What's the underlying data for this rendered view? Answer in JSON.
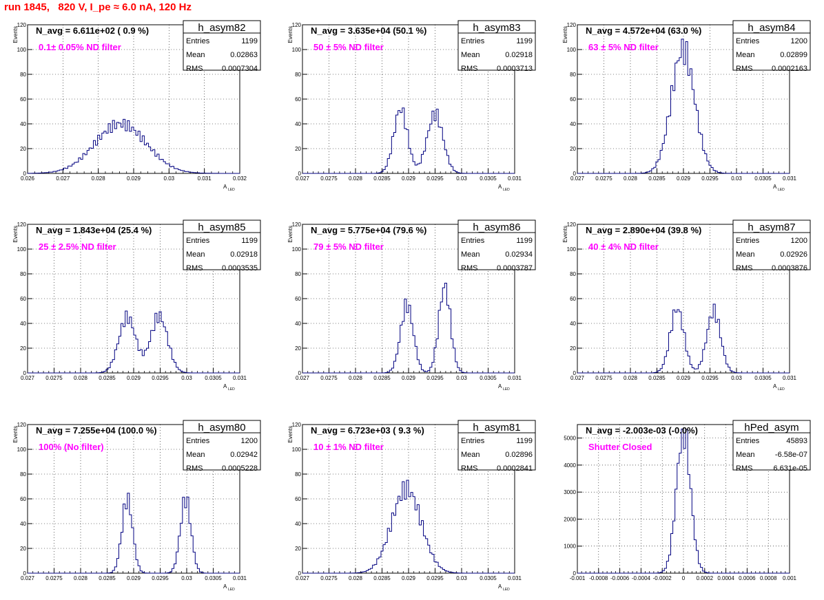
{
  "page_title": "run 1845,   820 V, I_pe ≈ 6.0 nA, 120 Hz",
  "colors": {
    "title": "#ff0000",
    "note": "#ff00ff",
    "hist": "#000080",
    "grid": "#000000"
  },
  "chart_data": [
    {
      "type": "histogram",
      "name": "h_asym82",
      "stats": {
        "entries": "1199",
        "mean": "0.02863",
        "rms": "0.0007304"
      },
      "navg_text": "N_avg = 6.611e+02 ( 0.9 %)",
      "note": "0.1± 0.05% ND filter",
      "ylabel": "Events",
      "xlabel": "A",
      "xlabel_sub": "LED",
      "xlim": [
        0.026,
        0.032
      ],
      "ylim": [
        0,
        120
      ],
      "xticks": [
        "0.026",
        "0.027",
        "0.028",
        "0.029",
        "0.03",
        "0.031",
        "0.032"
      ],
      "yticks": [
        "0",
        "20",
        "40",
        "60",
        "80",
        "100",
        "120"
      ],
      "grid": true,
      "components": [
        {
          "mu": 0.02863,
          "sigma": 0.00073,
          "peak": 40
        }
      ]
    },
    {
      "type": "histogram",
      "name": "h_asym83",
      "stats": {
        "entries": "1199",
        "mean": "0.02918",
        "rms": "0.0003713"
      },
      "navg_text": "N_avg = 3.635e+04 (50.1 %)",
      "note": "50 ± 5% ND filter",
      "ylabel": "Events",
      "xlabel": "A",
      "xlabel_sub": "LED",
      "xlim": [
        0.027,
        0.031
      ],
      "ylim": [
        0,
        120
      ],
      "xticks": [
        "0.027",
        "0.0275",
        "0.028",
        "0.0285",
        "0.029",
        "0.0295",
        "0.03",
        "0.0305",
        "0.031"
      ],
      "yticks": [
        "0",
        "20",
        "40",
        "60",
        "80",
        "100",
        "120"
      ],
      "grid": true,
      "components": [
        {
          "mu": 0.02885,
          "sigma": 0.00013,
          "peak": 52
        },
        {
          "mu": 0.0295,
          "sigma": 0.00015,
          "peak": 48
        }
      ]
    },
    {
      "type": "histogram",
      "name": "h_asym84",
      "stats": {
        "entries": "1200",
        "mean": "0.02899",
        "rms": "0.0002163"
      },
      "navg_text": "N_avg = 4.572e+04 (63.0 %)",
      "note": "63 ± 5% ND filter",
      "ylabel": "Events",
      "xlabel": "A",
      "xlabel_sub": "LED",
      "xlim": [
        0.027,
        0.031
      ],
      "ylim": [
        0,
        120
      ],
      "xticks": [
        "0.027",
        "0.0275",
        "0.028",
        "0.0285",
        "0.029",
        "0.0295",
        "0.03",
        "0.0305",
        "0.031"
      ],
      "yticks": [
        "0",
        "20",
        "40",
        "60",
        "80",
        "100",
        "120"
      ],
      "grid": true,
      "components": [
        {
          "mu": 0.02899,
          "sigma": 0.00022,
          "peak": 100
        }
      ]
    },
    {
      "type": "histogram",
      "name": "h_asym85",
      "stats": {
        "entries": "1199",
        "mean": "0.02918",
        "rms": "0.0003535"
      },
      "navg_text": "N_avg = 1.843e+04 (25.4 %)",
      "note": "25 ± 2.5% ND filter",
      "ylabel": "Events",
      "xlabel": "A",
      "xlabel_sub": "LED",
      "xlim": [
        0.027,
        0.031
      ],
      "ylim": [
        0,
        120
      ],
      "xticks": [
        "0.027",
        "0.0275",
        "0.028",
        "0.0285",
        "0.029",
        "0.0295",
        "0.03",
        "0.0305",
        "0.031"
      ],
      "yticks": [
        "0",
        "20",
        "40",
        "60",
        "80",
        "100",
        "120"
      ],
      "grid": true,
      "components": [
        {
          "mu": 0.02888,
          "sigma": 0.00016,
          "peak": 45
        },
        {
          "mu": 0.02948,
          "sigma": 0.00016,
          "peak": 46
        }
      ]
    },
    {
      "type": "histogram",
      "name": "h_asym86",
      "stats": {
        "entries": "1199",
        "mean": "0.02934",
        "rms": "0.0003787"
      },
      "navg_text": "N_avg = 5.775e+04 (79.6 %)",
      "note": "79 ± 5% ND filter",
      "ylabel": "Events",
      "xlabel": "A",
      "xlabel_sub": "LED",
      "xlim": [
        0.027,
        0.031
      ],
      "ylim": [
        0,
        120
      ],
      "xticks": [
        "0.027",
        "0.0275",
        "0.028",
        "0.0285",
        "0.029",
        "0.0295",
        "0.03",
        "0.0305",
        "0.031"
      ],
      "yticks": [
        "0",
        "20",
        "40",
        "60",
        "80",
        "100",
        "120"
      ],
      "grid": true,
      "components": [
        {
          "mu": 0.02897,
          "sigma": 0.00012,
          "peak": 55
        },
        {
          "mu": 0.02968,
          "sigma": 0.00011,
          "peak": 70
        }
      ]
    },
    {
      "type": "histogram",
      "name": "h_asym87",
      "stats": {
        "entries": "1200",
        "mean": "0.02926",
        "rms": "0.0003876"
      },
      "navg_text": "N_avg = 2.890e+04 (39.8 %)",
      "note": "40 ± 4% ND filter",
      "ylabel": "Events",
      "xlabel": "A",
      "xlabel_sub": "LED",
      "xlim": [
        0.027,
        0.031
      ],
      "ylim": [
        0,
        120
      ],
      "xticks": [
        "0.027",
        "0.0275",
        "0.028",
        "0.0285",
        "0.029",
        "0.0295",
        "0.03",
        "0.0305",
        "0.031"
      ],
      "yticks": [
        "0",
        "20",
        "40",
        "60",
        "80",
        "100",
        "120"
      ],
      "grid": true,
      "components": [
        {
          "mu": 0.02888,
          "sigma": 0.00013,
          "peak": 52
        },
        {
          "mu": 0.02957,
          "sigma": 0.00013,
          "peak": 50
        }
      ]
    },
    {
      "type": "histogram",
      "name": "h_asym80",
      "stats": {
        "entries": "1200",
        "mean": "0.02942",
        "rms": "0.0005228"
      },
      "navg_text": "N_avg = 7.255e+04 (100.0 %)",
      "note": "100% (No filter)",
      "ylabel": "Events",
      "xlabel": "A",
      "xlabel_sub": "LED",
      "xlim": [
        0.027,
        0.031
      ],
      "ylim": [
        0,
        120
      ],
      "xticks": [
        "0.027",
        "0.0275",
        "0.028",
        "0.0285",
        "0.029",
        "0.0295",
        "0.03",
        "0.0305",
        "0.031"
      ],
      "yticks": [
        "0",
        "20",
        "40",
        "60",
        "80",
        "100",
        "120"
      ],
      "grid": true,
      "components": [
        {
          "mu": 0.02888,
          "sigma": 0.0001,
          "peak": 60
        },
        {
          "mu": 0.02998,
          "sigma": 0.0001,
          "peak": 60
        }
      ]
    },
    {
      "type": "histogram",
      "name": "h_asym81",
      "stats": {
        "entries": "1199",
        "mean": "0.02896",
        "rms": "0.0002841"
      },
      "navg_text": "N_avg = 6.723e+03 ( 9.3 %)",
      "note": "10 ± 1% ND filter",
      "ylabel": "Events",
      "xlabel": "A",
      "xlabel_sub": "LED",
      "xlim": [
        0.027,
        0.031
      ],
      "ylim": [
        0,
        120
      ],
      "xticks": [
        "0.027",
        "0.0275",
        "0.028",
        "0.0285",
        "0.029",
        "0.0295",
        "0.03",
        "0.0305",
        "0.031"
      ],
      "yticks": [
        "0",
        "20",
        "40",
        "60",
        "80",
        "100",
        "120"
      ],
      "grid": true,
      "components": [
        {
          "mu": 0.02896,
          "sigma": 0.00028,
          "peak": 68
        }
      ]
    },
    {
      "type": "histogram",
      "name": "hPed_asym",
      "stats": {
        "entries": "45893",
        "mean": "-6.58e-07",
        "rms": "6.631e-05"
      },
      "navg_text": "N_avg = -2.003e-03 (-0.0%)",
      "note": "Shutter Closed",
      "ylabel": "",
      "xlabel": "",
      "xlabel_sub": "",
      "xlim": [
        -0.001,
        0.001
      ],
      "ylim": [
        0,
        5500
      ],
      "xticks": [
        "-0.001",
        "-0.0008",
        "-0.0006",
        "-0.0004",
        "-0.0002",
        "0",
        "0.0002",
        "0.0004",
        "0.0006",
        "0.0008",
        "0.001"
      ],
      "yticks": [
        "0",
        "1000",
        "2000",
        "3000",
        "4000",
        "5000"
      ],
      "ytick_values": [
        0,
        1000,
        2000,
        3000,
        4000,
        5000
      ],
      "grid": true,
      "components": [
        {
          "mu": 0.0,
          "sigma": 6.6e-05,
          "peak": 5300
        }
      ]
    }
  ]
}
